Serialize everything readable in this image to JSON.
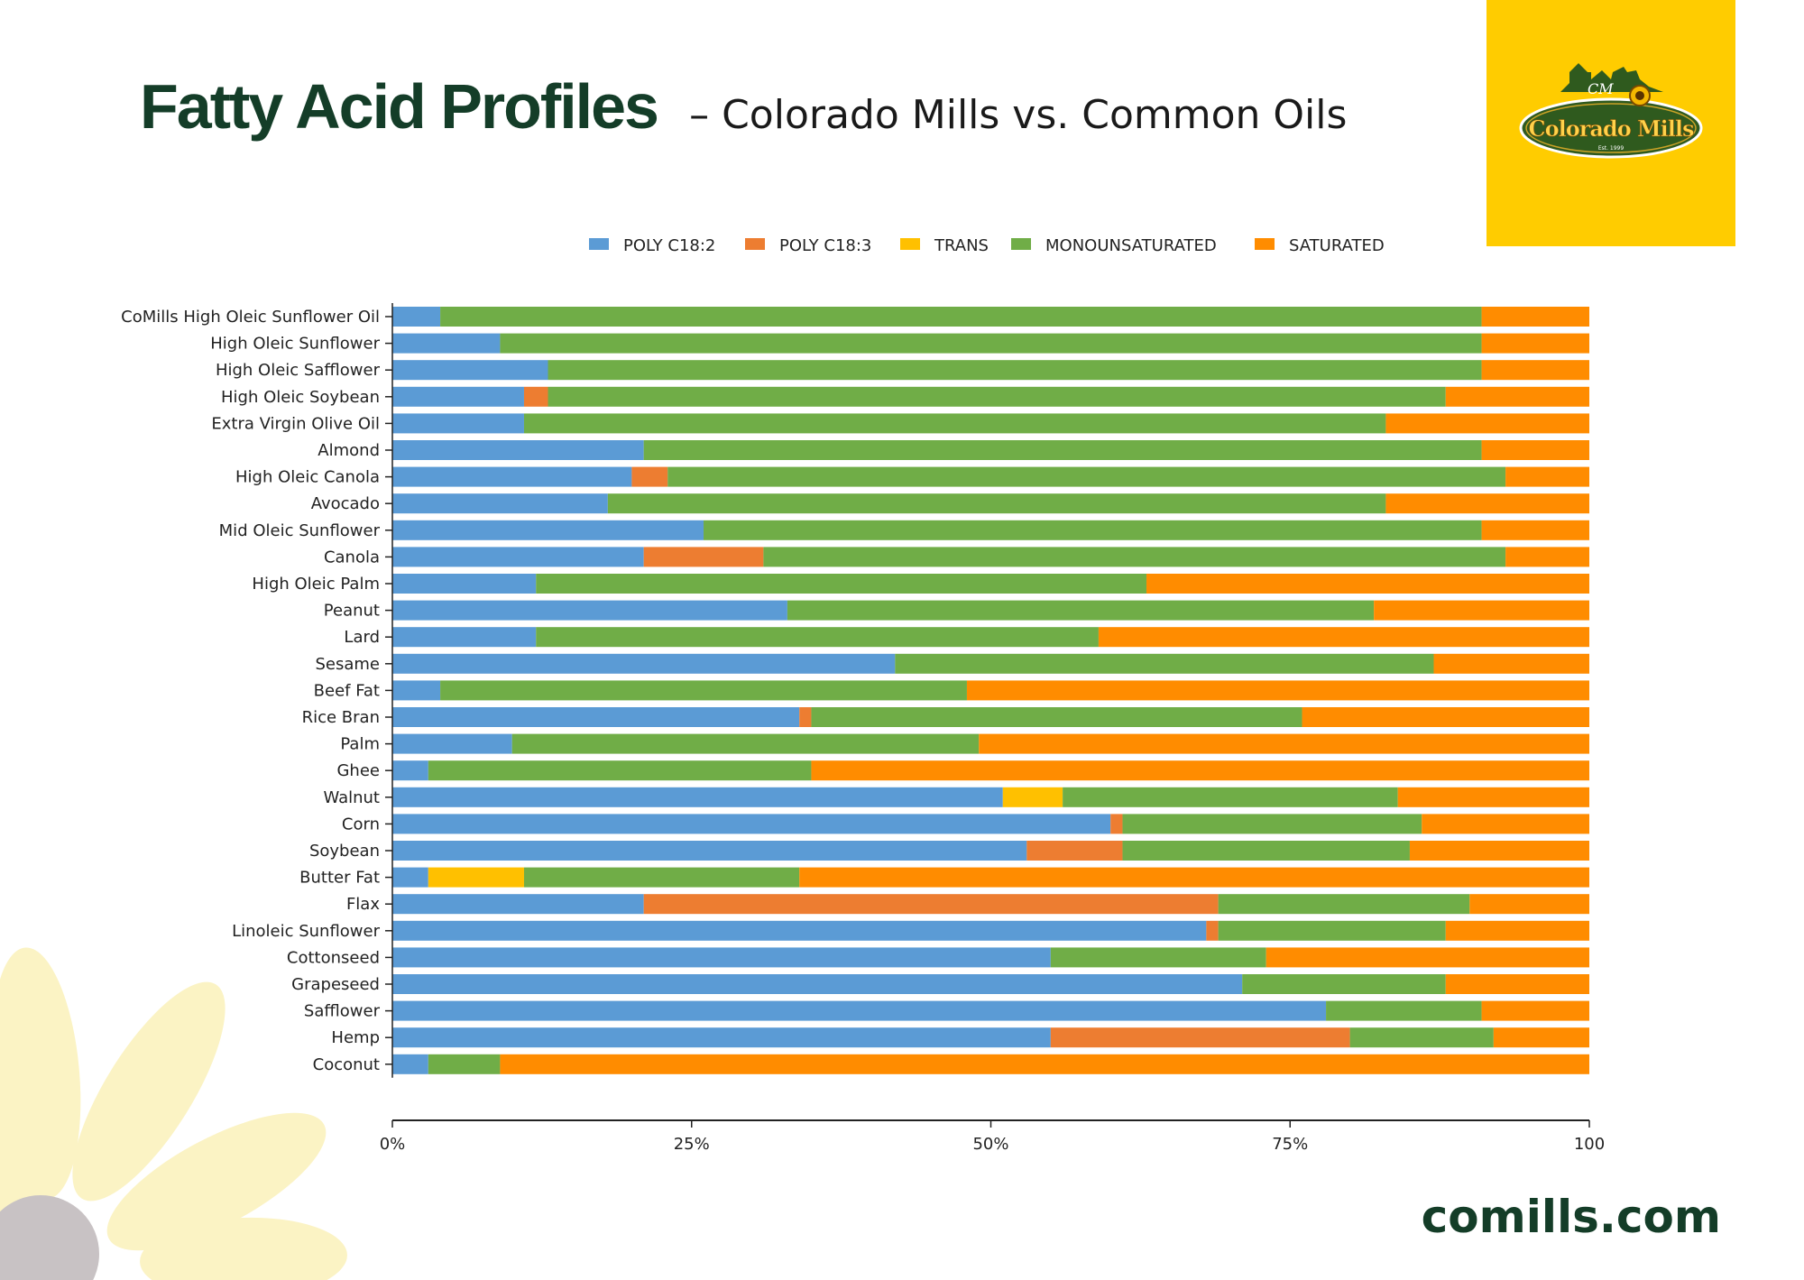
{
  "header": {
    "title": "Fatty Acid Profiles",
    "subtitle": "– Colorado Mills vs. Common Oils"
  },
  "logo": {
    "brand": "Colorado Mills",
    "monogram": "CM",
    "est": "Est. 1999",
    "background": "#ffcc00"
  },
  "footer": {
    "url": "comills.com"
  },
  "colors": {
    "title": "#143d28",
    "flower_petal": "#fbf3c4",
    "flower_center": "#c8c2c4"
  },
  "chart_data": {
    "type": "bar",
    "orientation": "horizontal",
    "stacked": true,
    "title": "",
    "xlabel": "",
    "ylabel": "",
    "xlim": [
      0,
      100
    ],
    "xticks": [
      0,
      25,
      50,
      75,
      100
    ],
    "xtick_labels": [
      "0%",
      "25%",
      "50%",
      "75%",
      "100"
    ],
    "grid": false,
    "legend_position": "top-center",
    "categories": [
      "CoMills High Oleic Sunflower Oil",
      "High Oleic Sunflower",
      "High Oleic Safflower",
      "High Oleic Soybean",
      "Extra Virgin Olive Oil",
      "Almond",
      "High Oleic Canola",
      "Avocado",
      "Mid Oleic Sunflower",
      "Canola",
      "High Oleic Palm",
      "Peanut",
      "Lard",
      "Sesame",
      "Beef Fat",
      "Rice Bran",
      "Palm",
      "Ghee",
      "Walnut",
      "Corn",
      "Soybean",
      "Butter Fat",
      "Flax",
      "Linoleic Sunflower",
      "Cottonseed",
      "Grapeseed",
      "Safflower",
      "Hemp",
      "Coconut"
    ],
    "series": [
      {
        "name": "POLY C18:2",
        "color": "#5b9bd5",
        "values": [
          4,
          9,
          13,
          11,
          11,
          21,
          20,
          18,
          26,
          21,
          12,
          33,
          12,
          42,
          4,
          34,
          10,
          3,
          51,
          60,
          53,
          3,
          21,
          68,
          55,
          71,
          78,
          55,
          3
        ]
      },
      {
        "name": "POLY C18:3",
        "color": "#ed7d31",
        "values": [
          0,
          0,
          0,
          2,
          0,
          0,
          3,
          0,
          0,
          10,
          0,
          0,
          0,
          0,
          0,
          1,
          0,
          0,
          0,
          1,
          8,
          0,
          48,
          1,
          0,
          0,
          0,
          25,
          0
        ]
      },
      {
        "name": "TRANS",
        "color": "#ffc000",
        "values": [
          0,
          0,
          0,
          0,
          0,
          0,
          0,
          0,
          0,
          0,
          0,
          0,
          0,
          0,
          0,
          0,
          0,
          0,
          5,
          0,
          0,
          8,
          0,
          0,
          0,
          0,
          0,
          0,
          0
        ]
      },
      {
        "name": "MONOUNSATURATED",
        "color": "#70ad47",
        "values": [
          87,
          82,
          78,
          75,
          72,
          70,
          70,
          65,
          65,
          62,
          51,
          49,
          47,
          45,
          44,
          41,
          39,
          32,
          28,
          25,
          24,
          23,
          21,
          19,
          18,
          17,
          13,
          12,
          6
        ]
      },
      {
        "name": "SATURATED",
        "color": "#ff8c00",
        "values": [
          9,
          9,
          9,
          12,
          17,
          9,
          7,
          17,
          9,
          7,
          37,
          18,
          41,
          13,
          52,
          24,
          51,
          65,
          16,
          14,
          15,
          66,
          10,
          12,
          27,
          12,
          9,
          8,
          91
        ]
      }
    ]
  }
}
